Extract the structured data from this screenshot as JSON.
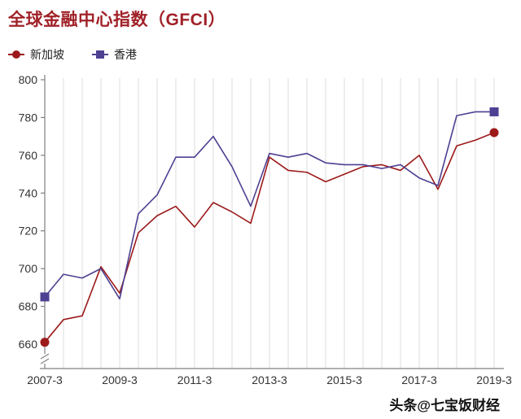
{
  "chart_data": {
    "type": "line",
    "title": "全球金融中心指数（GFCI）",
    "x": [
      "2007-3",
      "2007-9",
      "2008-3",
      "2008-9",
      "2009-3",
      "2009-9",
      "2010-3",
      "2010-9",
      "2011-3",
      "2011-9",
      "2012-3",
      "2012-9",
      "2013-3",
      "2013-9",
      "2014-3",
      "2014-9",
      "2015-3",
      "2015-9",
      "2016-3",
      "2016-9",
      "2017-3",
      "2017-9",
      "2018-3",
      "2018-9",
      "2019-3"
    ],
    "x_tick_interval": 4,
    "x_tick_labels": [
      "2007-3",
      "2009-3",
      "2011-3",
      "2013-3",
      "2015-3",
      "2017-3",
      "2019-3"
    ],
    "ylim": [
      660,
      800
    ],
    "ytick_step": 20,
    "grid": "vertical-only",
    "axis_break_bottom": true,
    "legend_position": "top-left",
    "series": [
      {
        "name": "新加坡",
        "color": "#9c1a1a",
        "marker": "circle",
        "marker_at": "endpoints",
        "values": [
          661,
          673,
          675,
          701,
          687,
          719,
          728,
          733,
          722,
          735,
          730,
          724,
          759,
          752,
          751,
          746,
          750,
          754,
          755,
          752,
          760,
          742,
          765,
          768,
          772
        ]
      },
      {
        "name": "香港",
        "color": "#4e4092",
        "marker": "square",
        "marker_at": "endpoints",
        "values": [
          685,
          697,
          695,
          700,
          684,
          729,
          739,
          759,
          759,
          770,
          754,
          733,
          761,
          759,
          761,
          756,
          755,
          755,
          753,
          755,
          748,
          744,
          781,
          783,
          783
        ]
      }
    ]
  },
  "watermark": "头条@七宝饭财经",
  "colors": {
    "title": "#a02128",
    "axis": "#808080",
    "grid": "#dcdcdc",
    "tick_label": "#333333",
    "watermark": "#111111",
    "background": "#ffffff"
  }
}
